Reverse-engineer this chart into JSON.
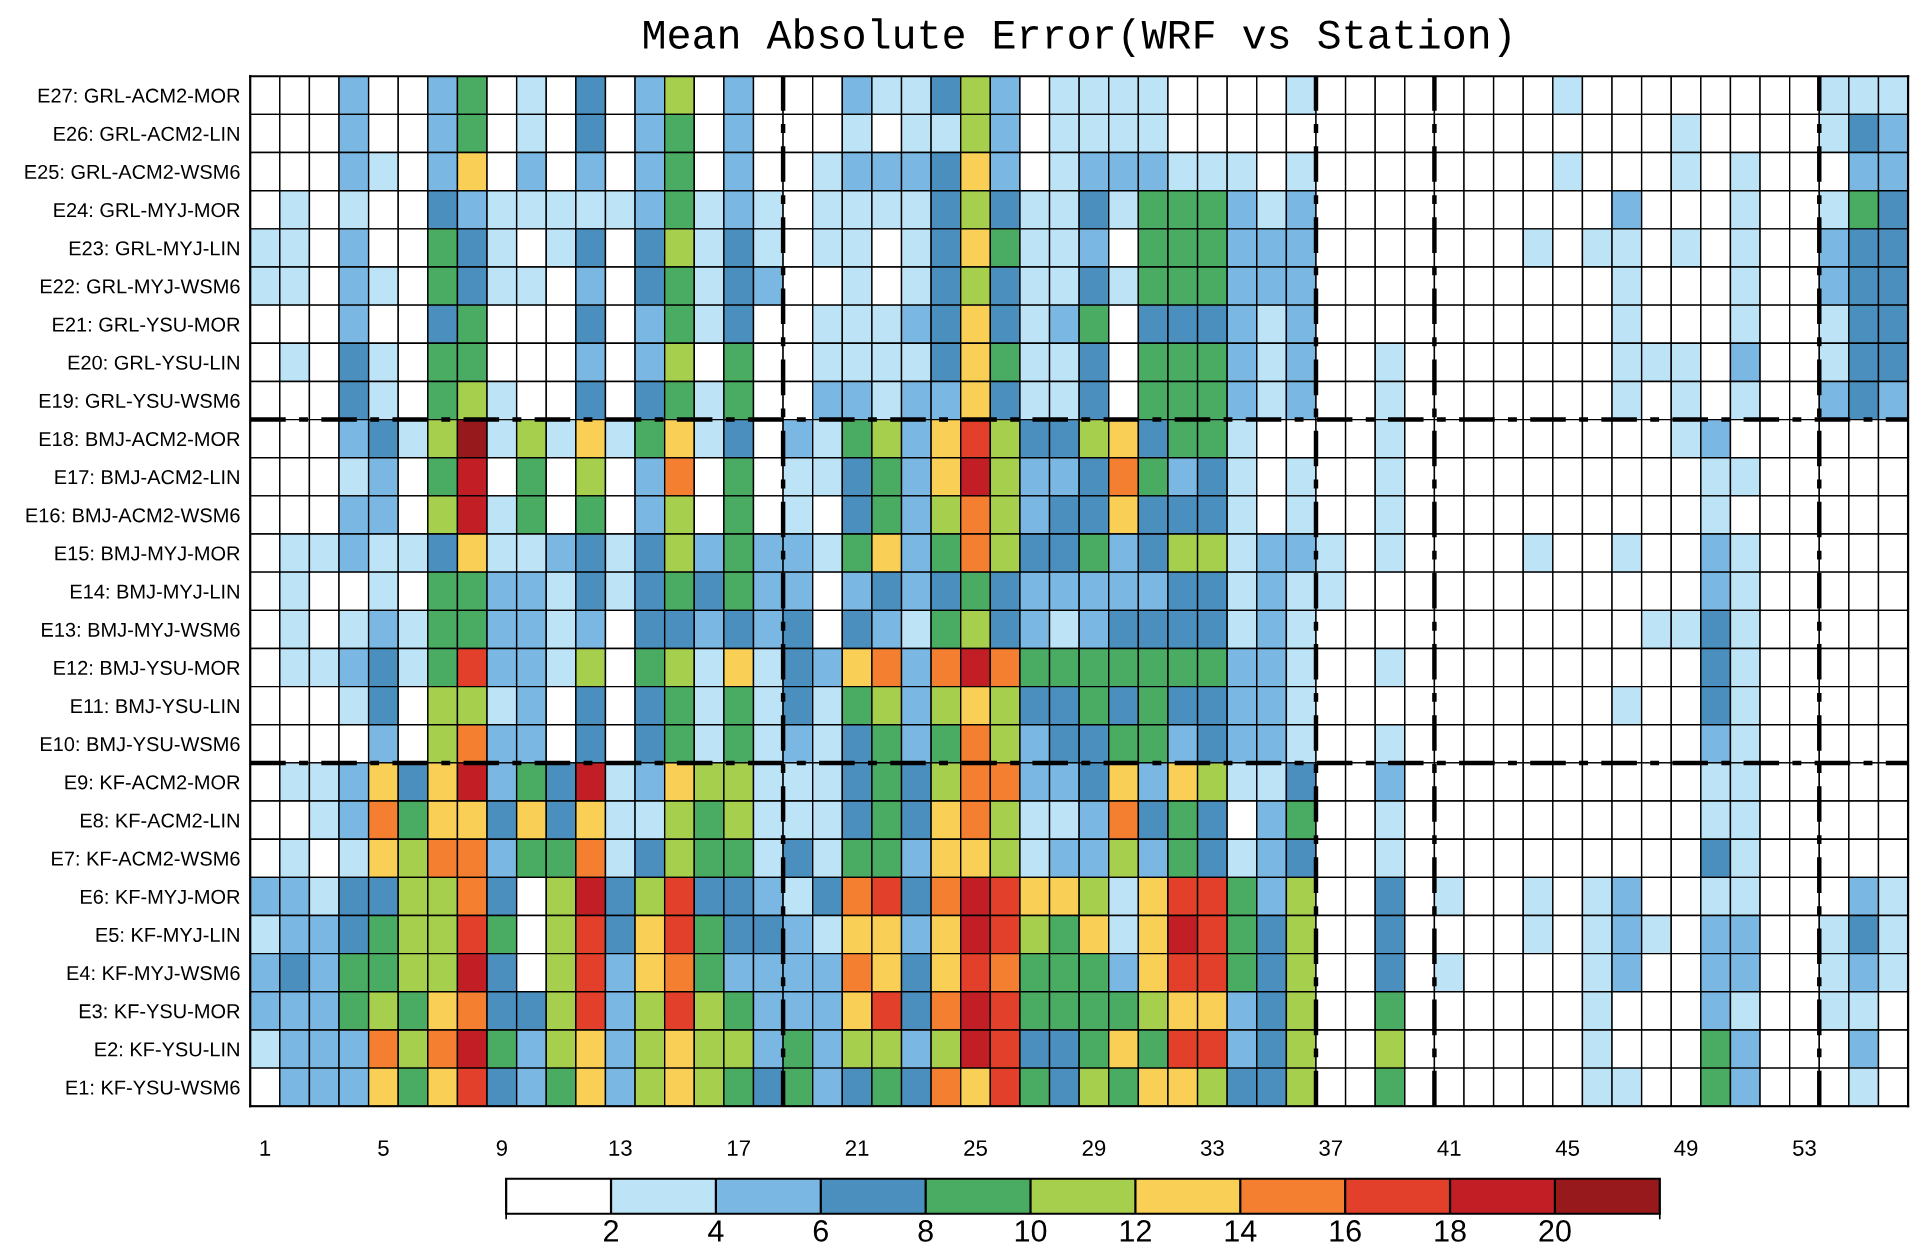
{
  "chart_data": {
    "type": "heatmap",
    "title": "Mean Absolute Error(WRF vs Station)",
    "x": [
      1,
      2,
      3,
      4,
      5,
      6,
      7,
      8,
      9,
      10,
      11,
      12,
      13,
      14,
      15,
      16,
      17,
      18,
      19,
      20,
      21,
      22,
      23,
      24,
      25,
      26,
      27,
      28,
      29,
      30,
      31,
      32,
      33,
      34,
      35,
      36,
      37,
      38,
      39,
      40,
      41,
      42,
      43,
      44,
      45,
      46,
      47,
      48,
      49,
      50,
      51,
      52,
      53,
      54,
      55,
      56
    ],
    "xlim": [
      0.5,
      56.5
    ],
    "xticks": [
      1,
      5,
      9,
      13,
      17,
      21,
      25,
      29,
      33,
      37,
      41,
      45,
      49,
      53
    ],
    "y_categories": [
      "E27: GRL-ACM2-MOR",
      "E26: GRL-ACM2-LIN",
      "E25: GRL-ACM2-WSM6",
      "E24: GRL-MYJ-MOR",
      "E23: GRL-MYJ-LIN",
      "E22: GRL-MYJ-WSM6",
      "E21: GRL-YSU-MOR",
      "E20: GRL-YSU-LIN",
      "E19: GRL-YSU-WSM6",
      "E18: BMJ-ACM2-MOR",
      "E17: BMJ-ACM2-LIN",
      "E16: BMJ-ACM2-WSM6",
      "E15: BMJ-MYJ-MOR",
      "E14: BMJ-MYJ-LIN",
      "E13: BMJ-MYJ-WSM6",
      "E12: BMJ-YSU-MOR",
      "E11: BMJ-YSU-LIN",
      "E10: BMJ-YSU-WSM6",
      "E9: KF-ACM2-MOR",
      "E8: KF-ACM2-LIN",
      "E7: KF-ACM2-WSM6",
      "E6: KF-MYJ-MOR",
      "E5: KF-MYJ-LIN",
      "E4: KF-MYJ-WSM6",
      "E3: KF-YSU-MOR",
      "E2: KF-YSU-LIN",
      "E1: KF-YSU-WSM6"
    ],
    "cells": [
      [
        1,
        1,
        1,
        5,
        1,
        1,
        5,
        9,
        1,
        3,
        1,
        7,
        1,
        5,
        11,
        1,
        5,
        1,
        1,
        1,
        5,
        3,
        3,
        7,
        11,
        5,
        1,
        3,
        3,
        3,
        3,
        1,
        1,
        1,
        1,
        3,
        1,
        1,
        1,
        1,
        1,
        1,
        1,
        1,
        3,
        1,
        1,
        1,
        1,
        1,
        1,
        1,
        1,
        3,
        3,
        3
      ],
      [
        1,
        1,
        1,
        5,
        1,
        1,
        5,
        9,
        1,
        3,
        1,
        7,
        1,
        5,
        9,
        1,
        5,
        1,
        1,
        1,
        3,
        1,
        3,
        3,
        11,
        5,
        1,
        3,
        3,
        3,
        3,
        1,
        1,
        1,
        1,
        1,
        1,
        1,
        1,
        1,
        1,
        1,
        1,
        1,
        1,
        1,
        1,
        1,
        3,
        1,
        1,
        1,
        1,
        3,
        7,
        5
      ],
      [
        1,
        1,
        1,
        5,
        3,
        1,
        5,
        13,
        1,
        5,
        1,
        5,
        1,
        5,
        9,
        1,
        5,
        1,
        1,
        3,
        5,
        5,
        5,
        7,
        13,
        5,
        1,
        3,
        5,
        5,
        5,
        3,
        3,
        3,
        1,
        3,
        1,
        1,
        1,
        1,
        1,
        1,
        1,
        1,
        3,
        1,
        1,
        1,
        3,
        1,
        3,
        1,
        1,
        1,
        5,
        5
      ],
      [
        1,
        3,
        1,
        3,
        1,
        1,
        7,
        5,
        3,
        3,
        3,
        3,
        3,
        5,
        9,
        3,
        5,
        3,
        1,
        3,
        3,
        3,
        3,
        7,
        11,
        7,
        3,
        3,
        7,
        3,
        9,
        9,
        9,
        5,
        3,
        5,
        1,
        1,
        1,
        1,
        1,
        1,
        1,
        1,
        1,
        1,
        5,
        1,
        1,
        1,
        3,
        1,
        1,
        3,
        9,
        7
      ],
      [
        3,
        3,
        1,
        5,
        1,
        1,
        9,
        7,
        3,
        1,
        3,
        7,
        1,
        7,
        11,
        3,
        7,
        3,
        1,
        3,
        3,
        1,
        3,
        7,
        13,
        9,
        3,
        3,
        5,
        1,
        9,
        9,
        9,
        5,
        5,
        5,
        1,
        1,
        1,
        1,
        1,
        1,
        1,
        3,
        1,
        3,
        3,
        1,
        3,
        1,
        3,
        1,
        1,
        5,
        7,
        7
      ],
      [
        3,
        3,
        1,
        5,
        3,
        1,
        9,
        7,
        3,
        3,
        1,
        5,
        1,
        7,
        9,
        3,
        7,
        5,
        1,
        1,
        3,
        1,
        3,
        7,
        11,
        7,
        3,
        3,
        7,
        3,
        9,
        9,
        9,
        5,
        5,
        5,
        1,
        1,
        1,
        1,
        1,
        1,
        1,
        1,
        1,
        1,
        3,
        1,
        1,
        1,
        3,
        1,
        1,
        5,
        7,
        7
      ],
      [
        1,
        1,
        1,
        5,
        1,
        1,
        7,
        9,
        1,
        1,
        1,
        7,
        1,
        5,
        9,
        3,
        7,
        1,
        1,
        3,
        3,
        3,
        5,
        7,
        13,
        7,
        3,
        5,
        9,
        1,
        7,
        7,
        7,
        5,
        3,
        5,
        1,
        1,
        1,
        1,
        1,
        1,
        1,
        1,
        1,
        1,
        3,
        1,
        1,
        1,
        3,
        1,
        1,
        3,
        7,
        7
      ],
      [
        1,
        3,
        1,
        7,
        3,
        1,
        9,
        9,
        1,
        1,
        1,
        5,
        1,
        5,
        11,
        1,
        9,
        1,
        1,
        3,
        3,
        3,
        3,
        7,
        13,
        9,
        3,
        3,
        7,
        1,
        9,
        9,
        9,
        5,
        3,
        5,
        1,
        1,
        3,
        1,
        1,
        1,
        1,
        1,
        1,
        1,
        3,
        3,
        3,
        1,
        5,
        1,
        1,
        3,
        7,
        7
      ],
      [
        1,
        1,
        1,
        7,
        3,
        1,
        9,
        11,
        3,
        1,
        1,
        7,
        1,
        7,
        9,
        3,
        9,
        1,
        1,
        5,
        5,
        3,
        5,
        5,
        13,
        7,
        3,
        3,
        7,
        1,
        9,
        9,
        9,
        5,
        3,
        5,
        1,
        1,
        3,
        1,
        1,
        1,
        1,
        1,
        1,
        1,
        3,
        1,
        3,
        1,
        3,
        1,
        1,
        5,
        7,
        5
      ],
      [
        1,
        1,
        1,
        5,
        7,
        3,
        11,
        21,
        3,
        11,
        3,
        13,
        3,
        9,
        13,
        3,
        7,
        1,
        5,
        3,
        9,
        11,
        5,
        13,
        17,
        11,
        7,
        7,
        11,
        13,
        7,
        9,
        9,
        3,
        1,
        1,
        1,
        1,
        3,
        1,
        1,
        1,
        1,
        1,
        1,
        1,
        1,
        1,
        3,
        5,
        1,
        1,
        1,
        1,
        1,
        1
      ],
      [
        1,
        1,
        1,
        3,
        5,
        1,
        9,
        19,
        1,
        9,
        1,
        11,
        1,
        5,
        15,
        1,
        9,
        1,
        3,
        3,
        7,
        9,
        5,
        13,
        19,
        11,
        5,
        5,
        7,
        15,
        9,
        5,
        7,
        3,
        1,
        3,
        1,
        1,
        3,
        1,
        1,
        1,
        1,
        1,
        1,
        1,
        1,
        1,
        1,
        3,
        3,
        1,
        1,
        1,
        1,
        1
      ],
      [
        1,
        1,
        1,
        5,
        5,
        1,
        11,
        19,
        3,
        9,
        1,
        9,
        1,
        5,
        11,
        1,
        9,
        1,
        3,
        1,
        7,
        9,
        5,
        11,
        15,
        11,
        5,
        7,
        7,
        13,
        7,
        7,
        7,
        3,
        1,
        3,
        1,
        1,
        3,
        1,
        1,
        1,
        1,
        1,
        1,
        1,
        1,
        1,
        1,
        3,
        1,
        1,
        1,
        1,
        1,
        1
      ],
      [
        1,
        3,
        3,
        5,
        3,
        3,
        7,
        13,
        3,
        3,
        5,
        7,
        3,
        7,
        11,
        5,
        9,
        5,
        5,
        3,
        9,
        13,
        5,
        9,
        15,
        11,
        7,
        7,
        9,
        5,
        7,
        11,
        11,
        3,
        5,
        5,
        3,
        1,
        3,
        1,
        1,
        1,
        1,
        3,
        1,
        1,
        3,
        1,
        1,
        5,
        3,
        1,
        1,
        1,
        1,
        1
      ],
      [
        1,
        3,
        1,
        1,
        3,
        1,
        9,
        9,
        5,
        5,
        3,
        7,
        3,
        7,
        9,
        7,
        9,
        5,
        5,
        1,
        5,
        7,
        5,
        7,
        9,
        7,
        5,
        5,
        5,
        5,
        5,
        7,
        7,
        3,
        5,
        3,
        3,
        1,
        1,
        1,
        1,
        1,
        1,
        1,
        1,
        1,
        1,
        1,
        1,
        5,
        3,
        1,
        1,
        1,
        1,
        1
      ],
      [
        1,
        3,
        1,
        3,
        5,
        3,
        9,
        9,
        5,
        5,
        3,
        5,
        1,
        7,
        7,
        5,
        7,
        5,
        7,
        1,
        7,
        5,
        3,
        9,
        11,
        7,
        5,
        3,
        5,
        7,
        7,
        7,
        7,
        3,
        5,
        3,
        1,
        1,
        1,
        1,
        1,
        1,
        1,
        1,
        1,
        1,
        1,
        3,
        3,
        7,
        3,
        1,
        1,
        1,
        1,
        1
      ],
      [
        1,
        3,
        3,
        5,
        7,
        3,
        9,
        17,
        5,
        5,
        3,
        11,
        1,
        9,
        11,
        3,
        13,
        3,
        7,
        5,
        13,
        15,
        5,
        15,
        19,
        15,
        9,
        9,
        9,
        9,
        9,
        9,
        9,
        5,
        5,
        3,
        1,
        1,
        3,
        1,
        1,
        1,
        1,
        1,
        1,
        1,
        1,
        1,
        1,
        7,
        3,
        1,
        1,
        1,
        1,
        1
      ],
      [
        1,
        1,
        1,
        3,
        7,
        1,
        11,
        11,
        3,
        5,
        1,
        7,
        1,
        7,
        9,
        3,
        9,
        3,
        7,
        3,
        9,
        11,
        5,
        11,
        13,
        11,
        7,
        7,
        9,
        7,
        9,
        7,
        7,
        5,
        5,
        3,
        1,
        1,
        1,
        1,
        1,
        1,
        1,
        1,
        1,
        1,
        3,
        1,
        1,
        7,
        3,
        1,
        1,
        1,
        1,
        1
      ],
      [
        1,
        1,
        1,
        1,
        5,
        1,
        11,
        15,
        5,
        5,
        1,
        7,
        1,
        7,
        9,
        3,
        9,
        3,
        5,
        3,
        7,
        9,
        5,
        9,
        15,
        11,
        5,
        7,
        7,
        9,
        9,
        5,
        7,
        5,
        5,
        3,
        1,
        1,
        3,
        1,
        1,
        1,
        1,
        1,
        1,
        1,
        1,
        1,
        1,
        5,
        3,
        1,
        1,
        1,
        1,
        1
      ],
      [
        1,
        3,
        3,
        5,
        13,
        7,
        13,
        19,
        5,
        9,
        7,
        19,
        3,
        5,
        13,
        11,
        11,
        3,
        3,
        3,
        7,
        9,
        7,
        11,
        15,
        15,
        5,
        5,
        7,
        13,
        5,
        13,
        11,
        3,
        3,
        7,
        1,
        1,
        5,
        1,
        1,
        1,
        1,
        1,
        1,
        1,
        1,
        1,
        1,
        3,
        3,
        1,
        1,
        1,
        1,
        1
      ],
      [
        1,
        1,
        3,
        5,
        15,
        9,
        13,
        13,
        7,
        13,
        7,
        13,
        3,
        3,
        11,
        9,
        11,
        3,
        3,
        3,
        7,
        9,
        7,
        13,
        15,
        11,
        3,
        3,
        5,
        15,
        7,
        9,
        7,
        1,
        5,
        9,
        1,
        1,
        3,
        1,
        1,
        1,
        1,
        1,
        1,
        1,
        1,
        1,
        1,
        3,
        3,
        1,
        1,
        1,
        1,
        1
      ],
      [
        1,
        3,
        1,
        3,
        13,
        11,
        15,
        15,
        5,
        9,
        9,
        15,
        3,
        7,
        11,
        9,
        9,
        3,
        7,
        3,
        9,
        9,
        5,
        13,
        13,
        11,
        3,
        5,
        5,
        11,
        5,
        9,
        7,
        3,
        5,
        7,
        1,
        1,
        3,
        1,
        1,
        1,
        1,
        1,
        1,
        1,
        1,
        1,
        1,
        7,
        3,
        1,
        1,
        1,
        1,
        1
      ],
      [
        5,
        5,
        3,
        7,
        7,
        11,
        11,
        15,
        7,
        1,
        11,
        19,
        7,
        11,
        17,
        7,
        7,
        5,
        3,
        7,
        15,
        17,
        7,
        15,
        19,
        17,
        13,
        13,
        11,
        3,
        13,
        17,
        17,
        9,
        5,
        11,
        1,
        1,
        7,
        1,
        3,
        1,
        1,
        3,
        1,
        3,
        5,
        1,
        1,
        3,
        3,
        1,
        1,
        1,
        5,
        3
      ],
      [
        3,
        5,
        5,
        7,
        9,
        11,
        11,
        17,
        9,
        1,
        11,
        17,
        7,
        13,
        17,
        9,
        7,
        7,
        5,
        3,
        13,
        13,
        5,
        13,
        19,
        17,
        11,
        9,
        13,
        3,
        13,
        19,
        17,
        9,
        7,
        11,
        1,
        1,
        7,
        1,
        1,
        1,
        1,
        3,
        1,
        3,
        5,
        3,
        1,
        5,
        5,
        1,
        1,
        3,
        7,
        3
      ],
      [
        5,
        7,
        5,
        9,
        9,
        11,
        11,
        19,
        7,
        1,
        11,
        17,
        5,
        13,
        15,
        9,
        5,
        5,
        5,
        5,
        15,
        13,
        7,
        13,
        17,
        15,
        9,
        9,
        9,
        5,
        13,
        17,
        17,
        9,
        7,
        11,
        1,
        1,
        7,
        1,
        3,
        1,
        1,
        1,
        1,
        3,
        5,
        1,
        1,
        5,
        5,
        1,
        1,
        3,
        5,
        3
      ],
      [
        5,
        5,
        5,
        9,
        11,
        9,
        13,
        15,
        7,
        7,
        11,
        17,
        5,
        11,
        17,
        11,
        9,
        5,
        5,
        5,
        13,
        17,
        7,
        15,
        19,
        17,
        9,
        9,
        9,
        9,
        11,
        13,
        13,
        5,
        7,
        11,
        1,
        1,
        9,
        1,
        1,
        1,
        1,
        1,
        1,
        3,
        1,
        1,
        1,
        5,
        3,
        1,
        1,
        3,
        3,
        1
      ],
      [
        3,
        5,
        5,
        5,
        15,
        11,
        15,
        19,
        9,
        5,
        11,
        13,
        5,
        11,
        13,
        11,
        11,
        5,
        9,
        5,
        11,
        11,
        5,
        11,
        19,
        17,
        7,
        7,
        9,
        13,
        9,
        17,
        17,
        5,
        7,
        11,
        1,
        1,
        11,
        1,
        1,
        1,
        1,
        1,
        1,
        3,
        1,
        1,
        1,
        9,
        5,
        1,
        1,
        1,
        5,
        1
      ],
      [
        1,
        5,
        5,
        5,
        13,
        9,
        13,
        17,
        7,
        5,
        9,
        13,
        5,
        11,
        13,
        11,
        9,
        7,
        9,
        5,
        7,
        9,
        7,
        15,
        13,
        17,
        9,
        7,
        11,
        9,
        13,
        13,
        11,
        7,
        7,
        11,
        1,
        1,
        9,
        1,
        1,
        1,
        1,
        1,
        1,
        3,
        3,
        1,
        1,
        9,
        5,
        1,
        1,
        1,
        3,
        1
      ]
    ],
    "colors": [
      "#ffffff",
      "#bde3f7",
      "#7ab8e3",
      "#4a8fbe",
      "#4aab62",
      "#a6cf4e",
      "#f9cf55",
      "#f57f30",
      "#e2402a",
      "#c11f25",
      "#98191c"
    ],
    "clim": [
      0,
      22
    ],
    "cticks": [
      2,
      4,
      6,
      8,
      10,
      12,
      14,
      16,
      18,
      20
    ],
    "ref_lines": [
      {
        "axis": "x",
        "value": 18.5,
        "line_style": "dashdot",
        "color": "#000000"
      },
      {
        "axis": "x",
        "value": 36.5,
        "line_style": "dashdot",
        "color": "#000000"
      },
      {
        "axis": "x",
        "value": 40.5,
        "line_style": "dashdot",
        "color": "#000000"
      },
      {
        "axis": "x",
        "value": 53.5,
        "line_style": "dashdot",
        "color": "#000000"
      }
    ]
  }
}
